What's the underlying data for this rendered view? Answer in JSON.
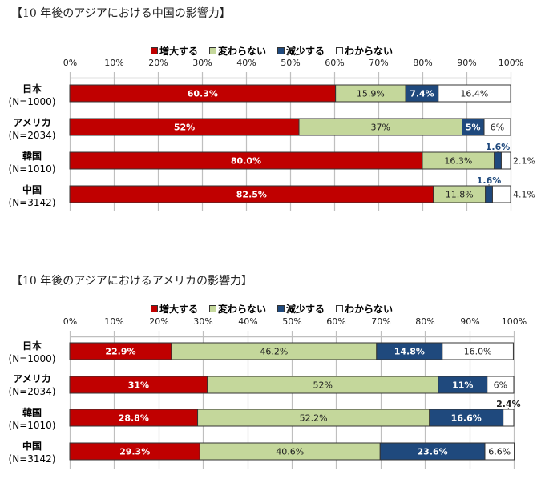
{
  "colors": {
    "increase": "#C00000",
    "unchanged": "#C4D79B",
    "decrease": "#1F497D",
    "unknown": "#FFFFFF",
    "grid": "#BFBFBF",
    "bar_border": "#333333"
  },
  "chart_data": [
    {
      "type": "bar",
      "orientation": "horizontal-stacked-100",
      "title": "【10 年後のアジアにおける中国の影響力】",
      "legend": [
        "増大する",
        "変わらない",
        "減少する",
        "わからない"
      ],
      "legend_position": "top",
      "x_ticks": [
        "0%",
        "10%",
        "20%",
        "30%",
        "40%",
        "50%",
        "60%",
        "70%",
        "80%",
        "90%",
        "100%"
      ],
      "xlim": [
        0,
        100
      ],
      "categories": [
        {
          "name": "日本",
          "n": "(N=1000)"
        },
        {
          "name": "アメリカ",
          "n": "(N=2034)"
        },
        {
          "name": "韓国",
          "n": "(N=1010)"
        },
        {
          "name": "中国",
          "n": "(N=3142)"
        }
      ],
      "series": [
        {
          "name": "増大する",
          "key": "increase",
          "values": [
            60.3,
            52,
            80.0,
            82.5
          ],
          "labels": [
            "60.3%",
            "52%",
            "80.0%",
            "82.5%"
          ]
        },
        {
          "name": "変わらない",
          "key": "unchanged",
          "values": [
            15.9,
            37,
            16.3,
            11.8
          ],
          "labels": [
            "15.9%",
            "37%",
            "16.3%",
            "11.8%"
          ]
        },
        {
          "name": "減少する",
          "key": "decrease",
          "values": [
            7.4,
            5,
            1.6,
            1.6
          ],
          "labels": [
            "7.4%",
            "5%",
            "1.6%",
            "1.6%"
          ]
        },
        {
          "name": "わからない",
          "key": "unknown",
          "values": [
            16.4,
            6,
            2.1,
            4.1
          ],
          "labels": [
            "16.4%",
            "6%",
            "2.1%",
            "4.1%"
          ]
        }
      ]
    },
    {
      "type": "bar",
      "orientation": "horizontal-stacked-100",
      "title": "【10 年後のアジアにおけるアメリカの影響力】",
      "legend": [
        "増大する",
        "変わらない",
        "減少する",
        "わからない"
      ],
      "legend_position": "top",
      "x_ticks": [
        "0%",
        "10%",
        "20%",
        "30%",
        "40%",
        "50%",
        "60%",
        "70%",
        "80%",
        "90%",
        "100%"
      ],
      "xlim": [
        0,
        100
      ],
      "categories": [
        {
          "name": "日本",
          "n": "(N=1000)"
        },
        {
          "name": "アメリカ",
          "n": "(N=2034)"
        },
        {
          "name": "韓国",
          "n": "(N=1010)"
        },
        {
          "name": "中国",
          "n": "(N=3142)"
        }
      ],
      "series": [
        {
          "name": "増大する",
          "key": "increase",
          "values": [
            22.9,
            31,
            28.8,
            29.3
          ],
          "labels": [
            "22.9%",
            "31%",
            "28.8%",
            "29.3%"
          ]
        },
        {
          "name": "変わらない",
          "key": "unchanged",
          "values": [
            46.2,
            52,
            52.2,
            40.6
          ],
          "labels": [
            "46.2%",
            "52%",
            "52.2%",
            "40.6%"
          ]
        },
        {
          "name": "減少する",
          "key": "decrease",
          "values": [
            14.8,
            11,
            16.6,
            23.6
          ],
          "labels": [
            "14.8%",
            "11%",
            "16.6%",
            "23.6%"
          ]
        },
        {
          "name": "わからない",
          "key": "unknown",
          "values": [
            16.0,
            6,
            2.4,
            6.6
          ],
          "labels": [
            "16.0%",
            "6%",
            "2.4%",
            "6.6%"
          ]
        }
      ]
    }
  ]
}
